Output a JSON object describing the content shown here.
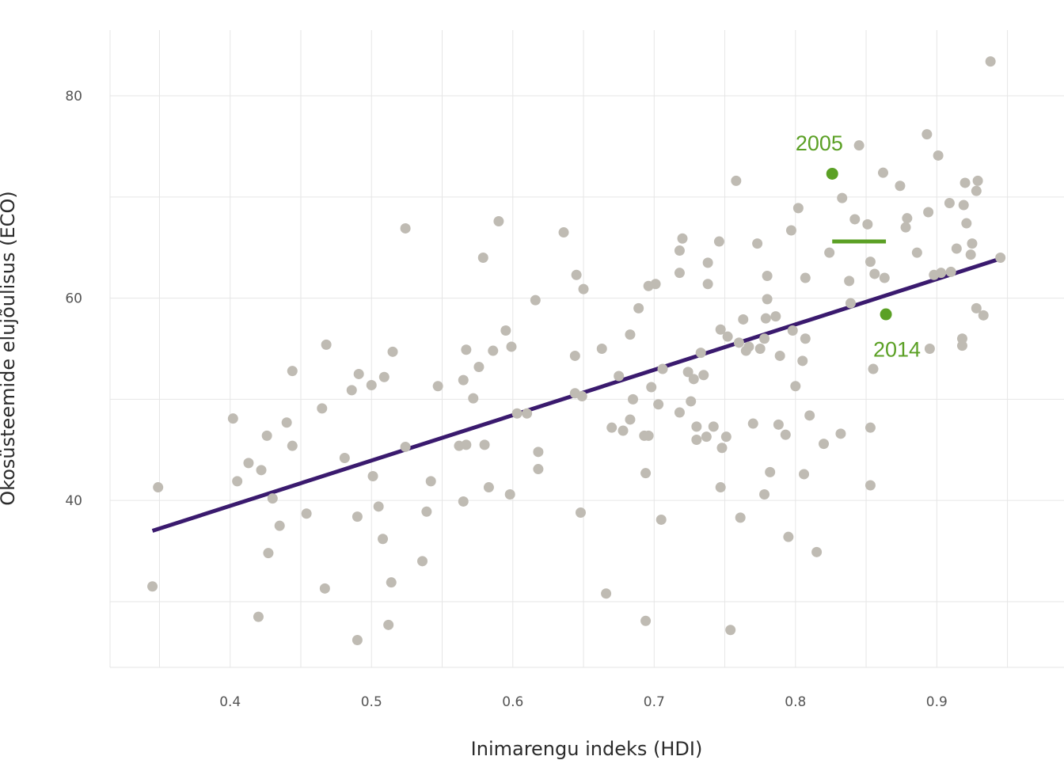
{
  "chart_data": {
    "type": "scatter",
    "xlabel": "Inimarengu indeks (HDI)",
    "ylabel": "Ökosüsteemide elujõulisus (ECO)",
    "xlim": [
      0.315,
      0.99
    ],
    "ylim": [
      23.5,
      86.5
    ],
    "x_ticks": [
      0.4,
      0.5,
      0.6,
      0.7,
      0.8,
      0.9
    ],
    "x_tick_labels": [
      "0.4",
      "0.5",
      "0.6",
      "0.7",
      "0.8",
      "0.9"
    ],
    "y_ticks": [
      40,
      60,
      80
    ],
    "y_tick_labels": [
      "40",
      "60",
      "80"
    ],
    "grid": true,
    "colors": {
      "points": "#bfbbb3",
      "trend": "#3a1a6e",
      "highlight": "#5ba025",
      "grid": "#e6e6e6"
    },
    "points": [
      [
        0.345,
        31.5
      ],
      [
        0.349,
        41.3
      ],
      [
        0.402,
        48.1
      ],
      [
        0.405,
        41.9
      ],
      [
        0.413,
        43.7
      ],
      [
        0.42,
        28.5
      ],
      [
        0.422,
        43.0
      ],
      [
        0.426,
        46.4
      ],
      [
        0.427,
        34.8
      ],
      [
        0.43,
        40.2
      ],
      [
        0.435,
        37.5
      ],
      [
        0.44,
        47.7
      ],
      [
        0.444,
        52.8
      ],
      [
        0.444,
        45.4
      ],
      [
        0.454,
        38.7
      ],
      [
        0.465,
        49.1
      ],
      [
        0.467,
        31.3
      ],
      [
        0.468,
        55.4
      ],
      [
        0.481,
        44.2
      ],
      [
        0.486,
        50.9
      ],
      [
        0.49,
        38.4
      ],
      [
        0.49,
        26.2
      ],
      [
        0.491,
        52.5
      ],
      [
        0.5,
        51.4
      ],
      [
        0.501,
        42.4
      ],
      [
        0.505,
        39.4
      ],
      [
        0.508,
        36.2
      ],
      [
        0.509,
        52.2
      ],
      [
        0.512,
        27.7
      ],
      [
        0.514,
        31.9
      ],
      [
        0.515,
        54.7
      ],
      [
        0.524,
        66.9
      ],
      [
        0.524,
        45.3
      ],
      [
        0.536,
        34.0
      ],
      [
        0.539,
        38.9
      ],
      [
        0.542,
        41.9
      ],
      [
        0.547,
        51.3
      ],
      [
        0.562,
        45.4
      ],
      [
        0.565,
        51.9
      ],
      [
        0.565,
        39.9
      ],
      [
        0.567,
        45.5
      ],
      [
        0.567,
        54.9
      ],
      [
        0.572,
        50.1
      ],
      [
        0.576,
        53.2
      ],
      [
        0.579,
        64.0
      ],
      [
        0.58,
        45.5
      ],
      [
        0.583,
        41.3
      ],
      [
        0.586,
        54.8
      ],
      [
        0.59,
        67.6
      ],
      [
        0.595,
        56.8
      ],
      [
        0.598,
        40.6
      ],
      [
        0.599,
        55.2
      ],
      [
        0.603,
        48.6
      ],
      [
        0.61,
        48.6
      ],
      [
        0.616,
        59.8
      ],
      [
        0.618,
        44.8
      ],
      [
        0.618,
        43.1
      ],
      [
        0.636,
        66.5
      ],
      [
        0.644,
        50.6
      ],
      [
        0.644,
        54.3
      ],
      [
        0.645,
        62.3
      ],
      [
        0.648,
        38.8
      ],
      [
        0.649,
        50.3
      ],
      [
        0.65,
        60.9
      ],
      [
        0.663,
        55.0
      ],
      [
        0.666,
        30.8
      ],
      [
        0.67,
        47.2
      ],
      [
        0.675,
        52.3
      ],
      [
        0.678,
        46.9
      ],
      [
        0.683,
        56.4
      ],
      [
        0.683,
        48.0
      ],
      [
        0.685,
        50.0
      ],
      [
        0.689,
        59.0
      ],
      [
        0.693,
        46.4
      ],
      [
        0.694,
        42.7
      ],
      [
        0.694,
        28.1
      ],
      [
        0.696,
        46.4
      ],
      [
        0.696,
        61.2
      ],
      [
        0.698,
        51.2
      ],
      [
        0.701,
        61.4
      ],
      [
        0.703,
        49.5
      ],
      [
        0.705,
        38.1
      ],
      [
        0.706,
        53.0
      ],
      [
        0.718,
        62.5
      ],
      [
        0.718,
        64.7
      ],
      [
        0.718,
        48.7
      ],
      [
        0.72,
        65.9
      ],
      [
        0.724,
        52.7
      ],
      [
        0.726,
        49.8
      ],
      [
        0.728,
        52.0
      ],
      [
        0.73,
        47.3
      ],
      [
        0.73,
        46.0
      ],
      [
        0.733,
        54.6
      ],
      [
        0.735,
        52.4
      ],
      [
        0.737,
        46.3
      ],
      [
        0.738,
        63.5
      ],
      [
        0.738,
        61.4
      ],
      [
        0.742,
        47.3
      ],
      [
        0.746,
        65.6
      ],
      [
        0.747,
        56.9
      ],
      [
        0.747,
        41.3
      ],
      [
        0.748,
        45.2
      ],
      [
        0.751,
        46.3
      ],
      [
        0.752,
        56.2
      ],
      [
        0.754,
        27.2
      ],
      [
        0.758,
        71.6
      ],
      [
        0.76,
        55.6
      ],
      [
        0.761,
        38.3
      ],
      [
        0.763,
        57.9
      ],
      [
        0.765,
        54.8
      ],
      [
        0.767,
        55.2
      ],
      [
        0.77,
        47.6
      ],
      [
        0.773,
        65.4
      ],
      [
        0.775,
        55.0
      ],
      [
        0.778,
        40.6
      ],
      [
        0.778,
        56.0
      ],
      [
        0.779,
        58.0
      ],
      [
        0.78,
        62.2
      ],
      [
        0.78,
        59.9
      ],
      [
        0.782,
        42.8
      ],
      [
        0.786,
        58.2
      ],
      [
        0.788,
        47.5
      ],
      [
        0.789,
        54.3
      ],
      [
        0.793,
        46.5
      ],
      [
        0.795,
        36.4
      ],
      [
        0.797,
        66.7
      ],
      [
        0.798,
        56.8
      ],
      [
        0.8,
        51.3
      ],
      [
        0.802,
        68.9
      ],
      [
        0.805,
        53.8
      ],
      [
        0.806,
        42.6
      ],
      [
        0.807,
        56.0
      ],
      [
        0.807,
        62.0
      ],
      [
        0.81,
        48.4
      ],
      [
        0.815,
        34.9
      ],
      [
        0.82,
        45.6
      ],
      [
        0.824,
        64.5
      ],
      [
        0.832,
        46.6
      ],
      [
        0.833,
        69.9
      ],
      [
        0.838,
        61.7
      ],
      [
        0.839,
        59.5
      ],
      [
        0.842,
        67.8
      ],
      [
        0.845,
        75.1
      ],
      [
        0.851,
        67.3
      ],
      [
        0.853,
        63.6
      ],
      [
        0.853,
        47.2
      ],
      [
        0.853,
        41.5
      ],
      [
        0.855,
        53.0
      ],
      [
        0.856,
        62.4
      ],
      [
        0.862,
        72.4
      ],
      [
        0.863,
        62.0
      ],
      [
        0.874,
        71.1
      ],
      [
        0.878,
        67.0
      ],
      [
        0.879,
        67.9
      ],
      [
        0.886,
        64.5
      ],
      [
        0.893,
        76.2
      ],
      [
        0.894,
        68.5
      ],
      [
        0.895,
        55.0
      ],
      [
        0.898,
        62.3
      ],
      [
        0.901,
        74.1
      ],
      [
        0.903,
        62.5
      ],
      [
        0.909,
        69.4
      ],
      [
        0.91,
        62.6
      ],
      [
        0.914,
        64.9
      ],
      [
        0.918,
        55.3
      ],
      [
        0.918,
        56.0
      ],
      [
        0.919,
        69.2
      ],
      [
        0.92,
        71.4
      ],
      [
        0.921,
        67.4
      ],
      [
        0.924,
        64.3
      ],
      [
        0.925,
        65.4
      ],
      [
        0.928,
        70.6
      ],
      [
        0.928,
        59.0
      ],
      [
        0.929,
        71.6
      ],
      [
        0.933,
        58.3
      ],
      [
        0.938,
        83.4
      ],
      [
        0.945,
        64.0
      ]
    ],
    "highlight_points": [
      {
        "x": 0.826,
        "y": 72.3
      },
      {
        "x": 0.864,
        "y": 58.4
      }
    ],
    "trend_line": {
      "x": [
        0.345,
        0.945
      ],
      "y": [
        37.0,
        63.9
      ]
    },
    "mean_segment": {
      "x": [
        0.826,
        0.864
      ],
      "y": 65.6
    },
    "annotations": [
      {
        "text": "2005",
        "x": 0.8,
        "y": 74.6
      },
      {
        "text": "2014",
        "x": 0.855,
        "y": 54.2
      }
    ]
  }
}
